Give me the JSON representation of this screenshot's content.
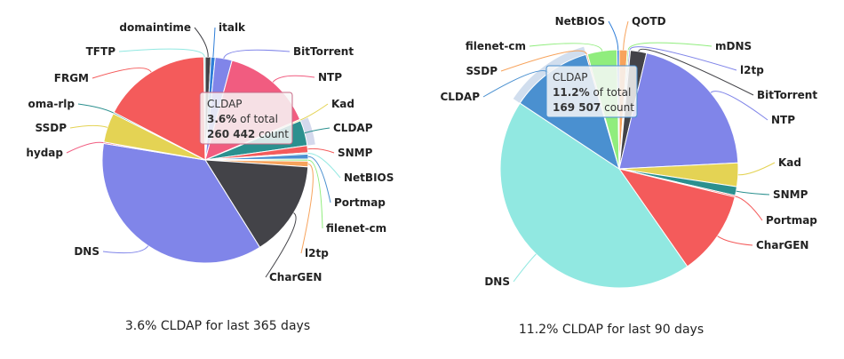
{
  "chart_data": [
    {
      "type": "pie",
      "caption": "3.6% CLDAP for last 365 days",
      "tooltip": {
        "name": "CLDAP",
        "pct": "3.6%",
        "pct_text": " of total",
        "count": "260 442",
        "count_text": " count"
      },
      "series": [
        {
          "name": "domaintime",
          "value": 0.8,
          "color": "#434348"
        },
        {
          "name": "italk",
          "value": 0.6,
          "color": "#2f7ed8"
        },
        {
          "name": "BitTorrent",
          "value": 2.4,
          "color": "#8085e9"
        },
        {
          "name": "NTP",
          "value": 13.0,
          "color": "#f15c80"
        },
        {
          "name": "Kad",
          "value": 0.2,
          "color": "#e4d354"
        },
        {
          "name": "CLDAP",
          "value": 3.6,
          "color": "#2b908f"
        },
        {
          "name": "SNMP",
          "value": 1.0,
          "color": "#f45b5b"
        },
        {
          "name": "NetBIOS",
          "value": 0.2,
          "color": "#91e8e1"
        },
        {
          "name": "Portmap",
          "value": 0.7,
          "color": "#4a90d0"
        },
        {
          "name": "filenet-cm",
          "value": 0.3,
          "color": "#90ed7d"
        },
        {
          "name": "l2tp",
          "value": 0.8,
          "color": "#f7a35c"
        },
        {
          "name": "CharGEN",
          "value": 13.6,
          "color": "#434348"
        },
        {
          "name": "DNS",
          "value": 33.0,
          "color": "#8085e9"
        },
        {
          "name": "hydap",
          "value": 0.2,
          "color": "#f15c80"
        },
        {
          "name": "SSDP",
          "value": 4.2,
          "color": "#e4d354"
        },
        {
          "name": "oma-rlp",
          "value": 0.2,
          "color": "#2b908f"
        },
        {
          "name": "FRGM",
          "value": 15.5,
          "color": "#f45b5b"
        },
        {
          "name": "TFTP",
          "value": 0.2,
          "color": "#91e8e1"
        }
      ]
    },
    {
      "type": "pie",
      "caption": "11.2% CLDAP for last 90 days",
      "tooltip": {
        "name": "CLDAP",
        "pct": "11.2%",
        "pct_text": " of total",
        "count": "169 507",
        "count_text": " count"
      },
      "series": [
        {
          "name": "QOTD",
          "value": 1.1,
          "color": "#f7a35c"
        },
        {
          "name": "mDNS",
          "value": 0.2,
          "color": "#90ed7d"
        },
        {
          "name": "l2tp",
          "value": 0.2,
          "color": "#8085e9"
        },
        {
          "name": "BitTorrent",
          "value": 2.2,
          "color": "#434348"
        },
        {
          "name": "NTP",
          "value": 20.5,
          "color": "#8085e9"
        },
        {
          "name": "Kad",
          "value": 3.2,
          "color": "#e4d354"
        },
        {
          "name": "SNMP",
          "value": 1.2,
          "color": "#2b908f"
        },
        {
          "name": "Portmap",
          "value": 0.2,
          "color": "#f45b5b"
        },
        {
          "name": "CharGEN",
          "value": 11.5,
          "color": "#f45b5b"
        },
        {
          "name": "DNS",
          "value": 44.0,
          "color": "#91e8e1"
        },
        {
          "name": "CLDAP",
          "value": 11.2,
          "color": "#4a90d0"
        },
        {
          "name": "SSDP",
          "value": 0.2,
          "color": "#f7a35c"
        },
        {
          "name": "filenet-cm",
          "value": 4.0,
          "color": "#90ed7d"
        },
        {
          "name": "NetBIOS",
          "value": 0.3,
          "color": "#2f7ed8"
        }
      ]
    }
  ]
}
